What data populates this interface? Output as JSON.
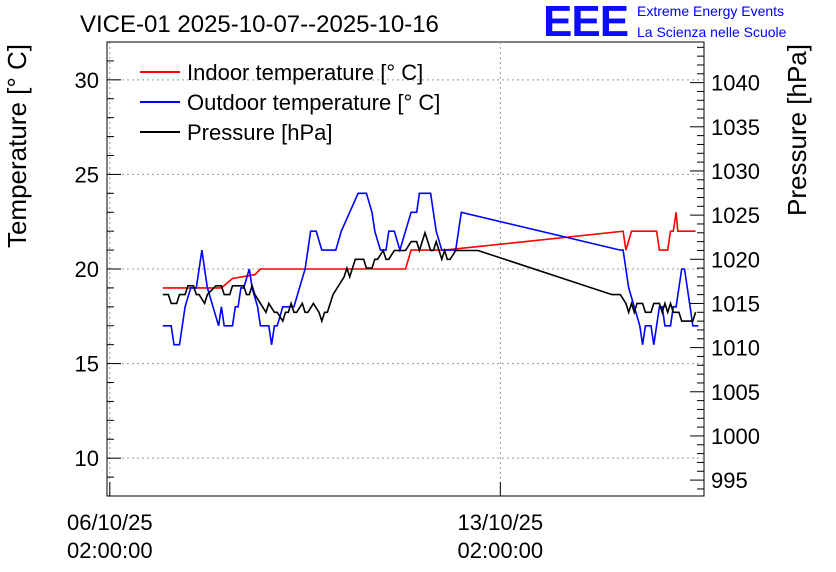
{
  "chart_data": {
    "type": "line",
    "title": "VICE-01 2025-10-07--2025-10-16",
    "ylabel": "Temperature [° C]",
    "y2label": "Pressure [hPa]",
    "ylim": [
      8,
      32
    ],
    "y2lim": [
      993.2,
      1044.6
    ],
    "yticks": [
      10,
      15,
      20,
      25,
      30
    ],
    "y2ticks": [
      995,
      1000,
      1005,
      1010,
      1015,
      1020,
      1025,
      1030,
      1035,
      1040
    ],
    "xlim": [
      -0.05,
      10.65
    ],
    "xticks": [
      {
        "value": 0,
        "label_date": "06/10/25",
        "label_time": "02:00:00"
      },
      {
        "value": 7,
        "label_date": "13/10/25",
        "label_time": "02:00:00"
      }
    ],
    "grid": true,
    "legend_position": "top-left",
    "series": [
      {
        "name": "Indoor temperature [° C]",
        "color": "#ff0000",
        "axis": "left",
        "points": [
          [
            0.95,
            19
          ],
          [
            1.2,
            19
          ],
          [
            1.3,
            19
          ],
          [
            1.6,
            19
          ],
          [
            1.9,
            19
          ],
          [
            2.0,
            19
          ],
          [
            2.2,
            19.5
          ],
          [
            2.6,
            19.7
          ],
          [
            2.7,
            20
          ],
          [
            3.5,
            20
          ],
          [
            4.5,
            20
          ],
          [
            5.3,
            20
          ],
          [
            5.4,
            21
          ],
          [
            6.0,
            21
          ],
          [
            9.2,
            22
          ],
          [
            9.25,
            21
          ],
          [
            9.35,
            22
          ],
          [
            9.8,
            22
          ],
          [
            9.85,
            21
          ],
          [
            10.0,
            21
          ],
          [
            10.05,
            22
          ],
          [
            10.1,
            22
          ],
          [
            10.15,
            23
          ],
          [
            10.18,
            22
          ],
          [
            10.5,
            22
          ]
        ]
      },
      {
        "name": "Outdoor temperature [° C]",
        "color": "#0000ff",
        "axis": "left",
        "points": [
          [
            0.95,
            17
          ],
          [
            1.1,
            17
          ],
          [
            1.15,
            16
          ],
          [
            1.25,
            16
          ],
          [
            1.3,
            17
          ],
          [
            1.35,
            18
          ],
          [
            1.45,
            19
          ],
          [
            1.55,
            19
          ],
          [
            1.6,
            20
          ],
          [
            1.65,
            21
          ],
          [
            1.7,
            20
          ],
          [
            1.75,
            19
          ],
          [
            1.85,
            18
          ],
          [
            1.95,
            17
          ],
          [
            2.0,
            18
          ],
          [
            2.05,
            17
          ],
          [
            2.2,
            17
          ],
          [
            2.25,
            18
          ],
          [
            2.3,
            18
          ],
          [
            2.35,
            19
          ],
          [
            2.4,
            19
          ],
          [
            2.5,
            20
          ],
          [
            2.55,
            19
          ],
          [
            2.65,
            18
          ],
          [
            2.7,
            17
          ],
          [
            2.85,
            17
          ],
          [
            2.9,
            16
          ],
          [
            2.95,
            17
          ],
          [
            3.0,
            17
          ],
          [
            3.1,
            18
          ],
          [
            3.2,
            18
          ],
          [
            3.3,
            18
          ],
          [
            3.4,
            19
          ],
          [
            3.5,
            20
          ],
          [
            3.55,
            21
          ],
          [
            3.6,
            22
          ],
          [
            3.7,
            22
          ],
          [
            3.8,
            21
          ],
          [
            3.95,
            21
          ],
          [
            4.05,
            21
          ],
          [
            4.15,
            22
          ],
          [
            4.3,
            23
          ],
          [
            4.45,
            24
          ],
          [
            4.6,
            24
          ],
          [
            4.7,
            23
          ],
          [
            4.75,
            22
          ],
          [
            4.85,
            21
          ],
          [
            4.95,
            21
          ],
          [
            5.0,
            22
          ],
          [
            5.1,
            22
          ],
          [
            5.2,
            21
          ],
          [
            5.3,
            22
          ],
          [
            5.4,
            23
          ],
          [
            5.5,
            23
          ],
          [
            5.55,
            24
          ],
          [
            5.75,
            24
          ],
          [
            5.8,
            23
          ],
          [
            5.85,
            22
          ],
          [
            5.95,
            21
          ],
          [
            6.2,
            21
          ],
          [
            6.25,
            22
          ],
          [
            6.3,
            23
          ],
          [
            9.15,
            21
          ],
          [
            9.2,
            21
          ],
          [
            9.25,
            20
          ],
          [
            9.3,
            19
          ],
          [
            9.4,
            18
          ],
          [
            9.5,
            17
          ],
          [
            9.55,
            16
          ],
          [
            9.6,
            17
          ],
          [
            9.7,
            17
          ],
          [
            9.75,
            16
          ],
          [
            9.8,
            17
          ],
          [
            9.85,
            18
          ],
          [
            9.9,
            18
          ],
          [
            9.95,
            17
          ],
          [
            10.05,
            17
          ],
          [
            10.1,
            18
          ],
          [
            10.15,
            18
          ],
          [
            10.2,
            19
          ],
          [
            10.25,
            20
          ],
          [
            10.3,
            20
          ],
          [
            10.35,
            19
          ],
          [
            10.4,
            18
          ],
          [
            10.45,
            17
          ],
          [
            10.55,
            17
          ]
        ]
      },
      {
        "name": "Pressure [hPa]",
        "color": "#000000",
        "axis": "right",
        "points": [
          [
            0.95,
            1016
          ],
          [
            1.05,
            1016
          ],
          [
            1.1,
            1015
          ],
          [
            1.2,
            1015
          ],
          [
            1.25,
            1016
          ],
          [
            1.35,
            1016
          ],
          [
            1.4,
            1017
          ],
          [
            1.5,
            1017
          ],
          [
            1.55,
            1016
          ],
          [
            1.6,
            1016
          ],
          [
            1.7,
            1015
          ],
          [
            1.75,
            1016
          ],
          [
            1.9,
            1017
          ],
          [
            2.0,
            1017
          ],
          [
            2.05,
            1016
          ],
          [
            2.15,
            1016
          ],
          [
            2.2,
            1017
          ],
          [
            2.3,
            1017
          ],
          [
            2.4,
            1017
          ],
          [
            2.45,
            1016
          ],
          [
            2.5,
            1016
          ],
          [
            2.55,
            1017
          ],
          [
            2.6,
            1016
          ],
          [
            2.7,
            1015
          ],
          [
            2.8,
            1014
          ],
          [
            2.85,
            1015
          ],
          [
            2.95,
            1014
          ],
          [
            3.0,
            1014
          ],
          [
            3.1,
            1013
          ],
          [
            3.15,
            1014
          ],
          [
            3.2,
            1014
          ],
          [
            3.25,
            1015
          ],
          [
            3.3,
            1014
          ],
          [
            3.35,
            1014
          ],
          [
            3.45,
            1015
          ],
          [
            3.5,
            1014
          ],
          [
            3.55,
            1014
          ],
          [
            3.65,
            1015
          ],
          [
            3.75,
            1014
          ],
          [
            3.8,
            1013
          ],
          [
            3.85,
            1014
          ],
          [
            3.9,
            1014
          ],
          [
            4.0,
            1016
          ],
          [
            4.1,
            1017
          ],
          [
            4.2,
            1018
          ],
          [
            4.25,
            1019
          ],
          [
            4.3,
            1018
          ],
          [
            4.35,
            1019
          ],
          [
            4.4,
            1020
          ],
          [
            4.45,
            1020
          ],
          [
            4.55,
            1020
          ],
          [
            4.6,
            1019
          ],
          [
            4.7,
            1019
          ],
          [
            4.75,
            1020
          ],
          [
            4.8,
            1020
          ],
          [
            4.9,
            1021
          ],
          [
            4.95,
            1020
          ],
          [
            5.0,
            1020
          ],
          [
            5.1,
            1021
          ],
          [
            5.2,
            1021
          ],
          [
            5.3,
            1021
          ],
          [
            5.4,
            1022
          ],
          [
            5.5,
            1022
          ],
          [
            5.55,
            1021
          ],
          [
            5.6,
            1022
          ],
          [
            5.65,
            1023
          ],
          [
            5.7,
            1022
          ],
          [
            5.75,
            1021
          ],
          [
            5.8,
            1021
          ],
          [
            5.85,
            1022
          ],
          [
            5.95,
            1020
          ],
          [
            6.0,
            1021
          ],
          [
            6.05,
            1020
          ],
          [
            6.1,
            1020
          ],
          [
            6.2,
            1021
          ],
          [
            6.3,
            1021
          ],
          [
            6.4,
            1021
          ],
          [
            6.6,
            1021
          ],
          [
            9.0,
            1016
          ],
          [
            9.15,
            1016
          ],
          [
            9.25,
            1015
          ],
          [
            9.3,
            1014
          ],
          [
            9.35,
            1015
          ],
          [
            9.4,
            1014
          ],
          [
            9.45,
            1015
          ],
          [
            9.5,
            1015
          ],
          [
            9.55,
            1015
          ],
          [
            9.6,
            1014
          ],
          [
            9.7,
            1014
          ],
          [
            9.75,
            1015
          ],
          [
            9.85,
            1015
          ],
          [
            9.9,
            1014
          ],
          [
            9.95,
            1015
          ],
          [
            10.0,
            1014
          ],
          [
            10.05,
            1015
          ],
          [
            10.1,
            1014
          ],
          [
            10.15,
            1014
          ],
          [
            10.2,
            1014
          ],
          [
            10.25,
            1013
          ],
          [
            10.35,
            1013
          ],
          [
            10.4,
            1013
          ],
          [
            10.45,
            1013
          ],
          [
            10.5,
            1014
          ]
        ]
      }
    ]
  },
  "logo": {
    "letters": "EEE",
    "line1": "Extreme Energy Events",
    "line2": "La Scienza nelle Scuole",
    "color": "#0000ff"
  }
}
